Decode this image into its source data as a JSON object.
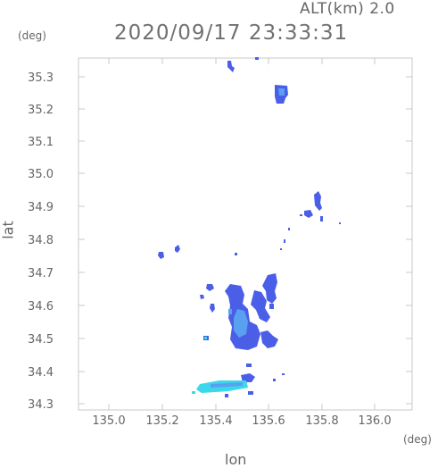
{
  "header": {
    "alt_label": "ALT(km) 2.0",
    "datetime": "2020/09/17 23:33:31"
  },
  "axes": {
    "y_unit": "(deg)",
    "x_unit": "(deg)",
    "y_title": "lat",
    "x_title": "lon",
    "x_ticks": [
      "135.0",
      "135.2",
      "135.4",
      "135.6",
      "135.8",
      "136.0"
    ],
    "y_ticks": [
      "35.3",
      "35.2",
      "35.1",
      "35.0",
      "34.9",
      "34.8",
      "34.7",
      "34.6",
      "34.5",
      "34.4",
      "34.3"
    ]
  },
  "colors": {
    "frame": "#c8c8c8",
    "echo_main": "#4a5ee8",
    "echo_light": "#5aa0f0",
    "echo_cyan": "#3ad8e8"
  }
}
